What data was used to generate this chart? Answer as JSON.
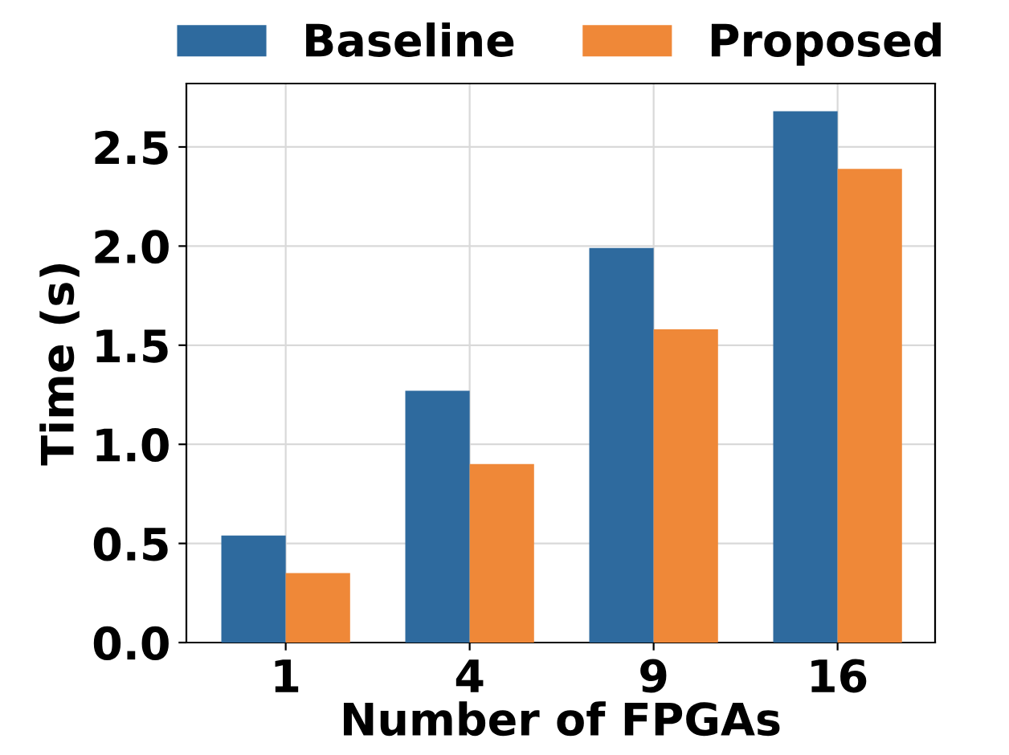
{
  "chart_data": {
    "type": "bar",
    "xlabel": "Number of FPGAs",
    "ylabel": "Time (s)",
    "categories": [
      "1",
      "4",
      "9",
      "16"
    ],
    "series": [
      {
        "name": "Baseline",
        "color": "#2e6a9e",
        "values": [
          0.54,
          1.27,
          1.99,
          2.68
        ]
      },
      {
        "name": "Proposed",
        "color": "#ef8838",
        "values": [
          0.35,
          0.9,
          1.58,
          2.39
        ]
      }
    ],
    "ylim": [
      0,
      2.82
    ],
    "yticks": [
      {
        "value": 0,
        "label": "0.0"
      },
      0.5,
      {
        "value": 1,
        "label": "1.0"
      },
      1.5,
      {
        "value": 2,
        "label": "2.0"
      },
      2.5
    ],
    "grid": true,
    "legend": "top"
  }
}
